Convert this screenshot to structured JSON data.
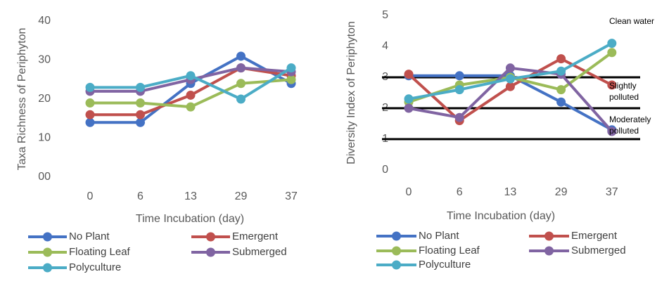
{
  "chart_data": [
    {
      "type": "line",
      "y_label": "Taxa Richness of Periphyton",
      "x_label": "Time Incubation (day)",
      "categories": [
        "0",
        "6",
        "13",
        "29",
        "37"
      ],
      "ylim": [
        0,
        40
      ],
      "yticks": [
        {
          "value": 0,
          "label": "00"
        },
        10,
        20,
        30,
        40
      ],
      "legend": "bottom",
      "series": [
        {
          "name": "No Plant",
          "color": "#4472c4",
          "values": [
            14,
            14,
            24,
            31,
            24
          ]
        },
        {
          "name": "Emergent",
          "color": "#c0504d",
          "values": [
            16,
            16,
            21,
            28,
            26
          ]
        },
        {
          "name": "Floating Leaf",
          "color": "#9bbb59",
          "values": [
            19,
            19,
            18,
            24,
            25
          ]
        },
        {
          "name": "Submerged",
          "color": "#8064a2",
          "values": [
            22,
            22,
            25,
            28,
            27
          ]
        },
        {
          "name": "Polyculture",
          "color": "#4bacc6",
          "values": [
            23,
            23,
            26,
            20,
            28
          ]
        }
      ]
    },
    {
      "type": "line",
      "y_label": "Diversity Index of Periphyton",
      "x_label": "Time Incubation (day)",
      "categories": [
        "0",
        "6",
        "13",
        "29",
        "37"
      ],
      "ylim": [
        0,
        5
      ],
      "yticks": [
        0,
        1,
        2,
        3,
        4,
        5
      ],
      "legend": "bottom",
      "reference_lines": [
        1,
        2,
        3
      ],
      "annotations": [
        "Clean water",
        "Slightly polluted",
        "Moderately polluted"
      ],
      "series": [
        {
          "name": "No Plant",
          "color": "#4472c4",
          "values": [
            3.05,
            3.05,
            3.05,
            2.2,
            1.3
          ]
        },
        {
          "name": "Emergent",
          "color": "#c0504d",
          "values": [
            3.1,
            1.6,
            2.7,
            3.6,
            2.75
          ]
        },
        {
          "name": "Floating Leaf",
          "color": "#9bbb59",
          "values": [
            2.2,
            2.75,
            3.0,
            2.6,
            3.8
          ]
        },
        {
          "name": "Submerged",
          "color": "#8064a2",
          "values": [
            2.0,
            1.7,
            3.3,
            3.1,
            1.25
          ]
        },
        {
          "name": "Polyculture",
          "color": "#4bacc6",
          "values": [
            2.3,
            2.6,
            2.95,
            3.2,
            4.1
          ]
        }
      ]
    }
  ]
}
